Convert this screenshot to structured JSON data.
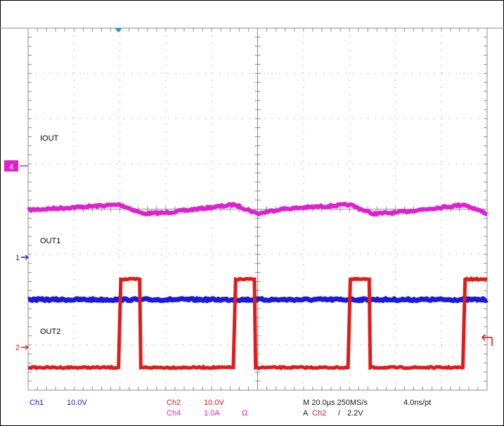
{
  "colors": {
    "ch1": "#1a1adc",
    "ch2": "#e31a1a",
    "ch4": "#e020d0",
    "grid": "#8c8c8c",
    "trigger_marker": "#1e96d2",
    "text_blue": "#1a1ad2"
  },
  "screen": {
    "x_divisions": 10,
    "y_divisions": 8
  },
  "markers": {
    "ch4": "4",
    "ch1": "1",
    "ch2": "2"
  },
  "trace_labels": {
    "iout": "IOUT",
    "out1": "OUT1",
    "out2": "OUT2"
  },
  "readout": {
    "ch1_name": "Ch1",
    "ch1_scale": "10.0V",
    "ch2_name": "Ch2",
    "ch2_scale": "10.0V",
    "ch4_name": "Ch4",
    "ch4_scale": "1.0A",
    "ch4_impedance": "Ω",
    "timebase": "M 20.0µs 250MS/s",
    "resolution": "4.0ns/pt",
    "trigger_prefix": "A",
    "trigger_source": "Ch2",
    "trigger_slope": "/",
    "trigger_level": "2.2V"
  },
  "chart_data": {
    "type": "line",
    "x_unit": "µs",
    "x_range": [
      0,
      200
    ],
    "time_per_division_us": 20,
    "series": [
      {
        "name": "IOUT",
        "channel": "Ch4",
        "unit": "A",
        "volts_per_div": 1.0,
        "ground_division": 4.0,
        "x": [
          0,
          40,
          50,
          60,
          90,
          100,
          110,
          140,
          150,
          160,
          190,
          200
        ],
        "y": [
          -0.02,
          0.1,
          -0.1,
          -0.08,
          0.1,
          -0.1,
          0.0,
          0.1,
          -0.1,
          -0.08,
          0.1,
          -0.1
        ]
      },
      {
        "name": "OUT1",
        "channel": "Ch1",
        "unit": "V",
        "volts_per_div": 10.0,
        "ground_division": 2.0,
        "x": [
          0,
          200
        ],
        "y": [
          0,
          0
        ]
      },
      {
        "name": "OUT2",
        "channel": "Ch2",
        "unit": "V",
        "volts_per_div": 10.0,
        "ground_division": 0.5,
        "x": [
          0,
          39.4,
          40.4,
          48.6,
          49.1,
          89.4,
          90.4,
          98.6,
          99.1,
          139.4,
          140.4,
          148.6,
          149.1,
          189.4,
          190.4,
          200
        ],
        "y": [
          0,
          0,
          19.5,
          19.5,
          0,
          0,
          19.5,
          19.5,
          0,
          0,
          19.5,
          19.5,
          0,
          0,
          19.5,
          19.5
        ]
      }
    ]
  }
}
